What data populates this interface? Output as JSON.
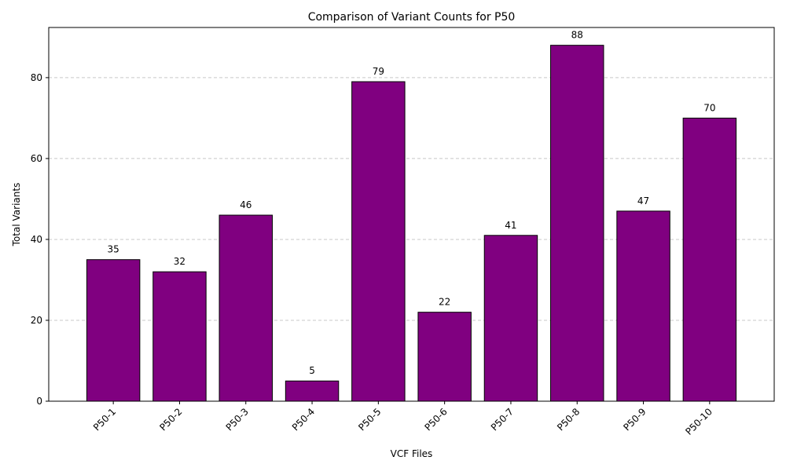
{
  "chart_data": {
    "type": "bar",
    "title": "Comparison of Variant Counts for P50",
    "xlabel": "VCF Files",
    "ylabel": "Total Variants",
    "categories": [
      "P50-1",
      "P50-2",
      "P50-3",
      "P50-4",
      "P50-5",
      "P50-6",
      "P50-7",
      "P50-8",
      "P50-9",
      "P50-10"
    ],
    "values": [
      35,
      32,
      46,
      5,
      79,
      22,
      41,
      88,
      47,
      70
    ],
    "ylim": [
      0,
      92.4
    ],
    "yticks": [
      0,
      20,
      40,
      60,
      80
    ],
    "grid": "y-axis dashed",
    "bar_color": "#800080",
    "bar_edge_color": "#000000",
    "grid_color": "#c8c8c8",
    "legend": "none"
  }
}
